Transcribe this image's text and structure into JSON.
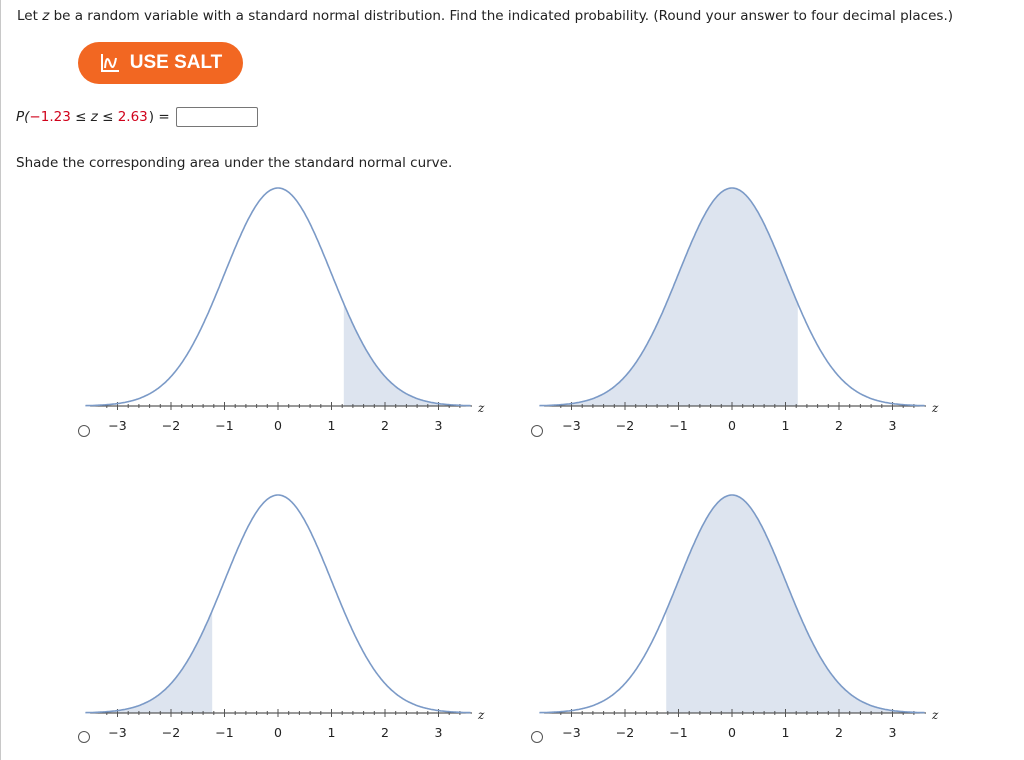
{
  "question": {
    "text_before_z": "Let ",
    "z": "z",
    "text_after_z": " be a random variable with a standard normal distribution. Find the indicated probability. (Round your answer to four decimal places.)"
  },
  "salt_button": {
    "label": "USE SALT",
    "color": "#f26722"
  },
  "probability": {
    "prefix": "P(",
    "lower": "−1.23",
    "ineq1": " ≤ ",
    "var": "z",
    "ineq2": " ≤ ",
    "upper": "2.63",
    "suffix": ") =",
    "answer_value": "",
    "highlight_color": "#d0021b"
  },
  "instruction": "Shade the corresponding area under the standard normal curve.",
  "axis": {
    "tick_labels": [
      "−3",
      "−2",
      "−1",
      "0",
      "1",
      "2",
      "3"
    ],
    "var_label": "z"
  },
  "curve_colors": {
    "line": "#7b9ac7",
    "fill": "#dde4ef"
  },
  "options": [
    {
      "shade_from": 1.23,
      "shade_to": 4.0,
      "selected": false
    },
    {
      "shade_from": -4.0,
      "shade_to": 1.23,
      "selected": false
    },
    {
      "shade_from": -4.0,
      "shade_to": -1.23,
      "selected": false
    },
    {
      "shade_from": -1.23,
      "shade_to": 4.0,
      "selected": false
    }
  ]
}
